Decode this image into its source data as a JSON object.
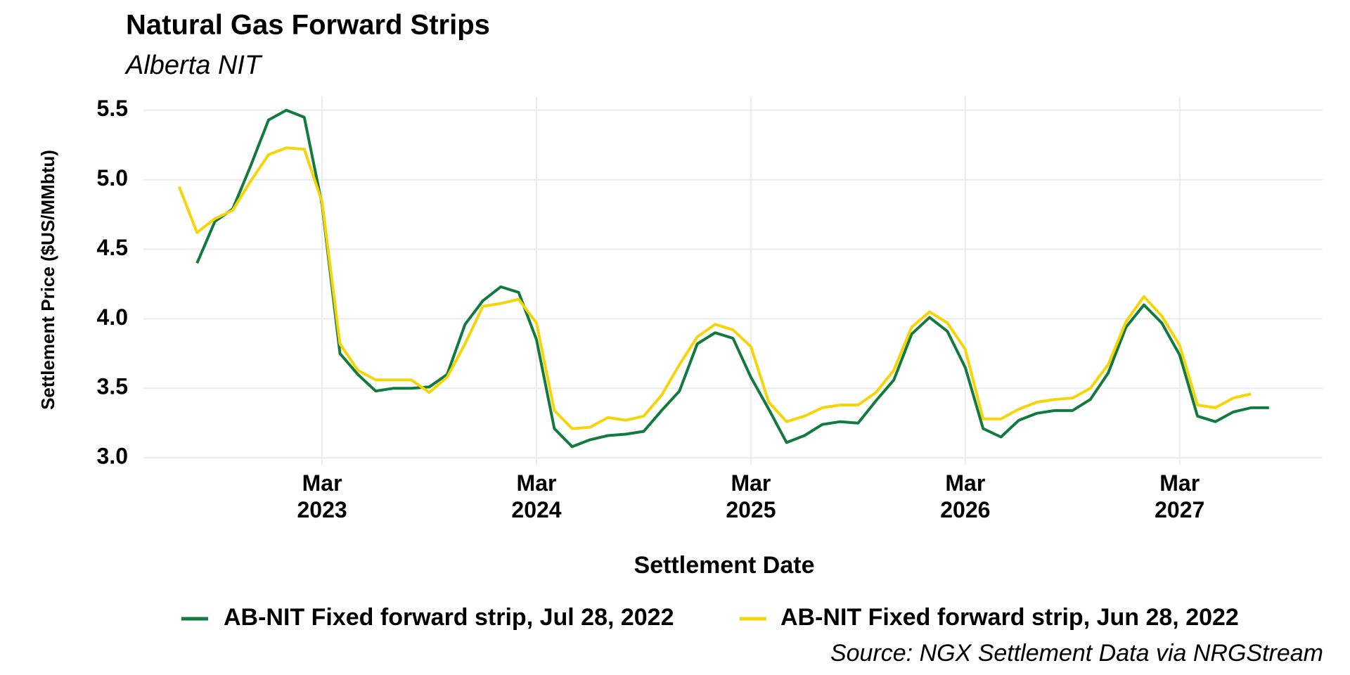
{
  "chart_data": {
    "type": "line",
    "title": "Natural Gas Forward Strips",
    "subtitle": "Alberta NIT",
    "x_label": "Settlement Date",
    "y_label": "Settlement Price ($US/MMbtu)",
    "caption": "Source: NGX Settlement Data via NRGStream",
    "grid": true,
    "legend": "bottom",
    "x": [
      "2022-07",
      "2022-08",
      "2022-09",
      "2022-10",
      "2022-11",
      "2022-12",
      "2023-01",
      "2023-02",
      "2023-03",
      "2023-04",
      "2023-05",
      "2023-06",
      "2023-07",
      "2023-08",
      "2023-09",
      "2023-10",
      "2023-11",
      "2023-12",
      "2024-01",
      "2024-02",
      "2024-03",
      "2024-04",
      "2024-05",
      "2024-06",
      "2024-07",
      "2024-08",
      "2024-09",
      "2024-10",
      "2024-11",
      "2024-12",
      "2025-01",
      "2025-02",
      "2025-03",
      "2025-04",
      "2025-05",
      "2025-06",
      "2025-07",
      "2025-08",
      "2025-09",
      "2025-10",
      "2025-11",
      "2025-12",
      "2026-01",
      "2026-02",
      "2026-03",
      "2026-04",
      "2026-05",
      "2026-06",
      "2026-07",
      "2026-08",
      "2026-09",
      "2026-10",
      "2026-11",
      "2026-12",
      "2027-01",
      "2027-02",
      "2027-03",
      "2027-04",
      "2027-05",
      "2027-06",
      "2027-07",
      "2027-08"
    ],
    "series": [
      {
        "name": "AB-NIT Fixed forward strip, Jul 28, 2022",
        "color": "#137a3f",
        "values": [
          null,
          4.4,
          4.7,
          4.79,
          5.1,
          5.43,
          5.5,
          5.45,
          4.82,
          3.75,
          3.6,
          3.48,
          3.5,
          3.5,
          3.51,
          3.6,
          3.96,
          4.13,
          4.23,
          4.19,
          3.85,
          3.21,
          3.08,
          3.13,
          3.16,
          3.17,
          3.19,
          3.34,
          3.48,
          3.82,
          3.9,
          3.86,
          3.58,
          3.35,
          3.11,
          3.16,
          3.24,
          3.26,
          3.25,
          3.41,
          3.56,
          3.89,
          4.01,
          3.91,
          3.65,
          3.21,
          3.15,
          3.27,
          3.32,
          3.34,
          3.34,
          3.42,
          3.61,
          3.94,
          4.1,
          3.97,
          3.74,
          3.3,
          3.26,
          3.33,
          3.36,
          3.36
        ]
      },
      {
        "name": "AB-NIT Fixed forward strip, Jun 28, 2022",
        "color": "#f5d50a",
        "values": [
          4.95,
          4.62,
          4.72,
          4.78,
          4.99,
          5.18,
          5.23,
          5.22,
          4.84,
          3.82,
          3.63,
          3.56,
          3.56,
          3.56,
          3.47,
          3.58,
          3.82,
          4.09,
          4.11,
          4.14,
          3.97,
          3.34,
          3.21,
          3.22,
          3.29,
          3.27,
          3.3,
          3.45,
          3.67,
          3.87,
          3.96,
          3.92,
          3.8,
          3.4,
          3.26,
          3.3,
          3.36,
          3.38,
          3.38,
          3.47,
          3.63,
          3.94,
          4.05,
          3.97,
          3.78,
          3.28,
          3.28,
          3.35,
          3.4,
          3.42,
          3.43,
          3.5,
          3.67,
          3.98,
          4.16,
          4.02,
          3.81,
          3.38,
          3.36,
          3.43,
          3.46,
          null
        ]
      }
    ],
    "xlim": [
      "2022-05",
      "2027-11"
    ],
    "xticks": [
      {
        "value": "2023-03",
        "label": "Mar\n2023"
      },
      {
        "value": "2024-03",
        "label": "Mar\n2024"
      },
      {
        "value": "2025-03",
        "label": "Mar\n2025"
      },
      {
        "value": "2026-03",
        "label": "Mar\n2026"
      },
      {
        "value": "2027-03",
        "label": "Mar\n2027"
      }
    ],
    "ylim": [
      2.95,
      5.6
    ],
    "yticks": [
      {
        "value": 3,
        "label": "3.0"
      },
      3.5,
      {
        "value": 4,
        "label": "4.0"
      },
      4.5,
      {
        "value": 5,
        "label": "5.0"
      },
      5.5
    ]
  }
}
